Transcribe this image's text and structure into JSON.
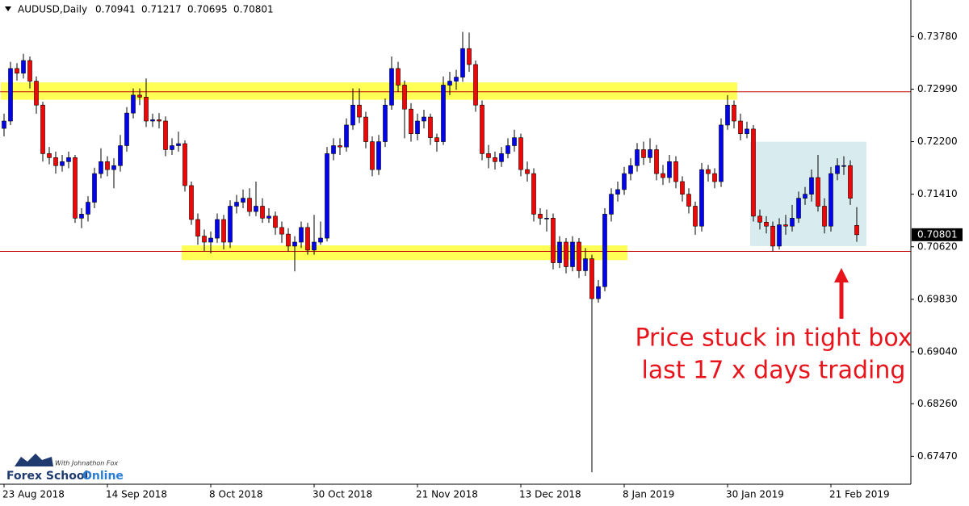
{
  "chart_data": {
    "type": "candlestick",
    "title": "AUDUSD,Daily",
    "annotation": [
      "Price stuck in tight box",
      "last 17 x days trading"
    ],
    "annotation_color": "#e8141c",
    "logo": {
      "tagline": "With Johnathon Fox",
      "name_first": "Forex School",
      "name_last": "Online"
    },
    "up_color": "#0000ff",
    "down_color": "#ff0000",
    "ylim": [
      0.6705,
      0.7433
    ],
    "yticks": [
      {
        "value": 0.7378,
        "label": "0.73780"
      },
      {
        "value": 0.7299,
        "label": "0.72990"
      },
      {
        "value": 0.722,
        "label": "0.72200"
      },
      {
        "value": 0.7141,
        "label": "0.71410"
      },
      {
        "value": 0.7062,
        "label": "0.70620"
      },
      {
        "value": 0.6983,
        "label": "0.69830"
      },
      {
        "value": 0.6904,
        "label": "0.69040"
      },
      {
        "value": 0.6826,
        "label": "0.68260"
      },
      {
        "value": 0.6747,
        "label": "0.67470"
      }
    ],
    "level_lines": [
      0.7295,
      0.7055
    ],
    "level_color": "#c00000",
    "zones": [
      {
        "from": 0,
        "to": 114,
        "top": 0.7309,
        "bottom": 0.7283,
        "color": "#ffff55"
      },
      {
        "from": 28,
        "to": 97,
        "top": 0.7064,
        "bottom": 0.7042,
        "color": "#ffff55"
      },
      {
        "from": 116,
        "to": 134,
        "top": 0.722,
        "bottom": 0.7063,
        "color": "#d8ecf0"
      }
    ],
    "categories": [
      "23 Aug 2018",
      null,
      null,
      null,
      null,
      null,
      null,
      null,
      null,
      null,
      null,
      null,
      null,
      null,
      null,
      null,
      "14 Sep 2018",
      null,
      null,
      null,
      null,
      null,
      null,
      null,
      null,
      null,
      null,
      null,
      null,
      null,
      null,
      null,
      "8 Oct 2018",
      null,
      null,
      null,
      null,
      null,
      null,
      null,
      null,
      null,
      null,
      null,
      null,
      null,
      null,
      null,
      "30 Oct 2018",
      null,
      null,
      null,
      null,
      null,
      null,
      null,
      null,
      null,
      null,
      null,
      null,
      null,
      null,
      null,
      "21 Nov 2018",
      null,
      null,
      null,
      null,
      null,
      null,
      null,
      null,
      null,
      null,
      null,
      null,
      null,
      null,
      null,
      "13 Dec 2018",
      null,
      null,
      null,
      null,
      null,
      null,
      null,
      null,
      null,
      null,
      null,
      null,
      null,
      null,
      null,
      "8 Jan 2019",
      null,
      null,
      null,
      null,
      null,
      null,
      null,
      null,
      null,
      null,
      null,
      null,
      null,
      null,
      null,
      "30 Jan 2019",
      null,
      null,
      null,
      null,
      null,
      null,
      null,
      null,
      null,
      null,
      null,
      null,
      null,
      null,
      null,
      "21 Feb 2019",
      null,
      null,
      null,
      null
    ],
    "open": [
      0.724,
      0.7251,
      0.733,
      0.7323,
      0.7342,
      0.7311,
      0.7275,
      0.7202,
      0.7196,
      0.7184,
      0.719,
      0.7196,
      0.7105,
      0.7111,
      0.7129,
      0.7172,
      0.719,
      0.7178,
      0.7184,
      0.7214,
      0.7263,
      0.729,
      0.7287,
      0.7251,
      0.7253,
      0.7251,
      0.7208,
      0.7214,
      0.7217,
      0.7154,
      0.7103,
      0.7078,
      0.7069,
      0.7075,
      0.7103,
      0.7069,
      0.7123,
      0.7129,
      0.7135,
      0.7115,
      0.7123,
      0.7105,
      0.7108,
      0.7091,
      0.7081,
      0.7063,
      0.7069,
      0.7091,
      0.7057,
      0.7069,
      0.7075,
      0.7202,
      0.7214,
      0.7212,
      0.7245,
      0.7275,
      0.7257,
      0.722,
      0.7178,
      0.722,
      0.7275,
      0.733,
      0.7305,
      0.7269,
      0.7232,
      0.7251,
      0.7257,
      0.7226,
      0.722,
      0.7305,
      0.7311,
      0.7317,
      0.736,
      0.7336,
      0.7275,
      0.7202,
      0.7196,
      0.719,
      0.7202,
      0.7214,
      0.7226,
      0.7178,
      0.7172,
      0.7111,
      0.7105,
      0.7105,
      0.7038,
      0.7069,
      0.7032,
      0.7069,
      0.7026,
      0.7044,
      0.6984,
      0.7002,
      0.7111,
      0.7141,
      0.7148,
      0.7172,
      0.7184,
      0.7208,
      0.7196,
      0.7208,
      0.7172,
      0.7166,
      0.719,
      0.716,
      0.7141,
      0.7123,
      0.7093,
      0.7178,
      0.7172,
      0.716,
      0.7245,
      0.7275,
      0.7251,
      0.7232,
      0.7239,
      0.7108,
      0.7099,
      0.7093,
      0.7063,
      0.7095,
      0.7093,
      0.7105,
      0.7135,
      0.7141,
      0.7166,
      0.7123,
      0.7093,
      0.7172,
      0.7184,
      0.7184,
      0.70941
    ],
    "high": [
      0.7262,
      0.734,
      0.7338,
      0.7352,
      0.7348,
      0.7318,
      0.728,
      0.7212,
      0.7205,
      0.72,
      0.7205,
      0.72,
      0.712,
      0.7138,
      0.7181,
      0.721,
      0.7198,
      0.7195,
      0.723,
      0.7272,
      0.73,
      0.73,
      0.7315,
      0.7262,
      0.7263,
      0.7258,
      0.7225,
      0.7235,
      0.7222,
      0.716,
      0.7112,
      0.7088,
      0.7085,
      0.7112,
      0.711,
      0.7132,
      0.714,
      0.7148,
      0.715,
      0.716,
      0.7135,
      0.712,
      0.7115,
      0.71,
      0.709,
      0.7078,
      0.71,
      0.7098,
      0.711,
      0.71,
      0.7212,
      0.7225,
      0.7225,
      0.7255,
      0.73,
      0.73,
      0.7265,
      0.7228,
      0.723,
      0.7285,
      0.7348,
      0.734,
      0.7312,
      0.7278,
      0.7262,
      0.7268,
      0.7262,
      0.7232,
      0.7318,
      0.7325,
      0.7328,
      0.7385,
      0.7384,
      0.7342,
      0.7282,
      0.7215,
      0.7205,
      0.7212,
      0.7225,
      0.7238,
      0.7232,
      0.719,
      0.718,
      0.712,
      0.7118,
      0.7112,
      0.7078,
      0.7075,
      0.7078,
      0.7075,
      0.706,
      0.705,
      0.7012,
      0.712,
      0.715,
      0.716,
      0.7182,
      0.7195,
      0.7218,
      0.722,
      0.7225,
      0.7215,
      0.7185,
      0.72,
      0.7198,
      0.7168,
      0.715,
      0.713,
      0.7188,
      0.7185,
      0.718,
      0.7255,
      0.729,
      0.7282,
      0.7262,
      0.725,
      0.7245,
      0.7118,
      0.7108,
      0.71,
      0.7105,
      0.711,
      0.7125,
      0.7145,
      0.7152,
      0.7178,
      0.72,
      0.7135,
      0.7182,
      0.7195,
      0.7198,
      0.7192,
      0.71217
    ],
    "low": [
      0.7228,
      0.7245,
      0.7312,
      0.7315,
      0.73,
      0.7262,
      0.719,
      0.7186,
      0.7172,
      0.7175,
      0.718,
      0.7098,
      0.709,
      0.71,
      0.712,
      0.7165,
      0.7168,
      0.715,
      0.7175,
      0.7205,
      0.7255,
      0.7275,
      0.7242,
      0.7242,
      0.724,
      0.7198,
      0.72,
      0.7205,
      0.7145,
      0.7095,
      0.7065,
      0.7055,
      0.7052,
      0.7068,
      0.7058,
      0.706,
      0.7112,
      0.712,
      0.7108,
      0.7108,
      0.7098,
      0.7098,
      0.708,
      0.7068,
      0.7055,
      0.7025,
      0.706,
      0.705,
      0.705,
      0.7065,
      0.707,
      0.7192,
      0.72,
      0.7205,
      0.7238,
      0.7248,
      0.721,
      0.7168,
      0.717,
      0.7212,
      0.7268,
      0.7295,
      0.7225,
      0.722,
      0.7222,
      0.724,
      0.7215,
      0.7205,
      0.7215,
      0.729,
      0.7298,
      0.731,
      0.7325,
      0.7265,
      0.7192,
      0.718,
      0.7178,
      0.7182,
      0.7195,
      0.7205,
      0.7168,
      0.716,
      0.71,
      0.7095,
      0.7085,
      0.7028,
      0.703,
      0.7022,
      0.7025,
      0.7015,
      0.7018,
      0.6723,
      0.6978,
      0.6995,
      0.71,
      0.713,
      0.714,
      0.7162,
      0.7175,
      0.7185,
      0.7188,
      0.7162,
      0.7155,
      0.7158,
      0.715,
      0.713,
      0.7112,
      0.708,
      0.7085,
      0.716,
      0.715,
      0.7152,
      0.7238,
      0.724,
      0.7222,
      0.7225,
      0.71,
      0.7088,
      0.7082,
      0.7055,
      0.7058,
      0.708,
      0.7085,
      0.7098,
      0.7125,
      0.713,
      0.7115,
      0.7082,
      0.7085,
      0.7162,
      0.717,
      0.7125,
      0.70695
    ],
    "close": [
      0.7251,
      0.733,
      0.7323,
      0.7342,
      0.7311,
      0.7275,
      0.7202,
      0.7196,
      0.7184,
      0.719,
      0.7196,
      0.7105,
      0.7111,
      0.7129,
      0.7172,
      0.719,
      0.7178,
      0.7184,
      0.7214,
      0.7263,
      0.729,
      0.7287,
      0.7251,
      0.7253,
      0.7251,
      0.7208,
      0.7214,
      0.7217,
      0.7154,
      0.7103,
      0.7078,
      0.7069,
      0.7075,
      0.7103,
      0.7069,
      0.7123,
      0.7129,
      0.7135,
      0.7115,
      0.7123,
      0.7105,
      0.7108,
      0.7091,
      0.7081,
      0.7063,
      0.7069,
      0.7091,
      0.7057,
      0.7069,
      0.7075,
      0.7202,
      0.7214,
      0.7212,
      0.7245,
      0.7275,
      0.7257,
      0.722,
      0.7178,
      0.722,
      0.7275,
      0.733,
      0.7305,
      0.7269,
      0.7232,
      0.7251,
      0.7257,
      0.7226,
      0.722,
      0.7305,
      0.7311,
      0.7317,
      0.736,
      0.7336,
      0.7275,
      0.7202,
      0.7196,
      0.719,
      0.7202,
      0.7214,
      0.7226,
      0.7178,
      0.7172,
      0.7111,
      0.7105,
      0.7105,
      0.7038,
      0.7069,
      0.7032,
      0.7069,
      0.7026,
      0.7044,
      0.6984,
      0.7002,
      0.7111,
      0.7141,
      0.7148,
      0.7172,
      0.7184,
      0.7208,
      0.7196,
      0.7208,
      0.7172,
      0.7166,
      0.719,
      0.716,
      0.7141,
      0.7123,
      0.7093,
      0.7178,
      0.7172,
      0.716,
      0.7245,
      0.7275,
      0.7251,
      0.7232,
      0.7239,
      0.7108,
      0.7099,
      0.7093,
      0.7063,
      0.7095,
      0.7093,
      0.7105,
      0.7135,
      0.7141,
      0.7166,
      0.7123,
      0.7093,
      0.7172,
      0.7184,
      0.7184,
      0.7135,
      0.70801
    ]
  }
}
